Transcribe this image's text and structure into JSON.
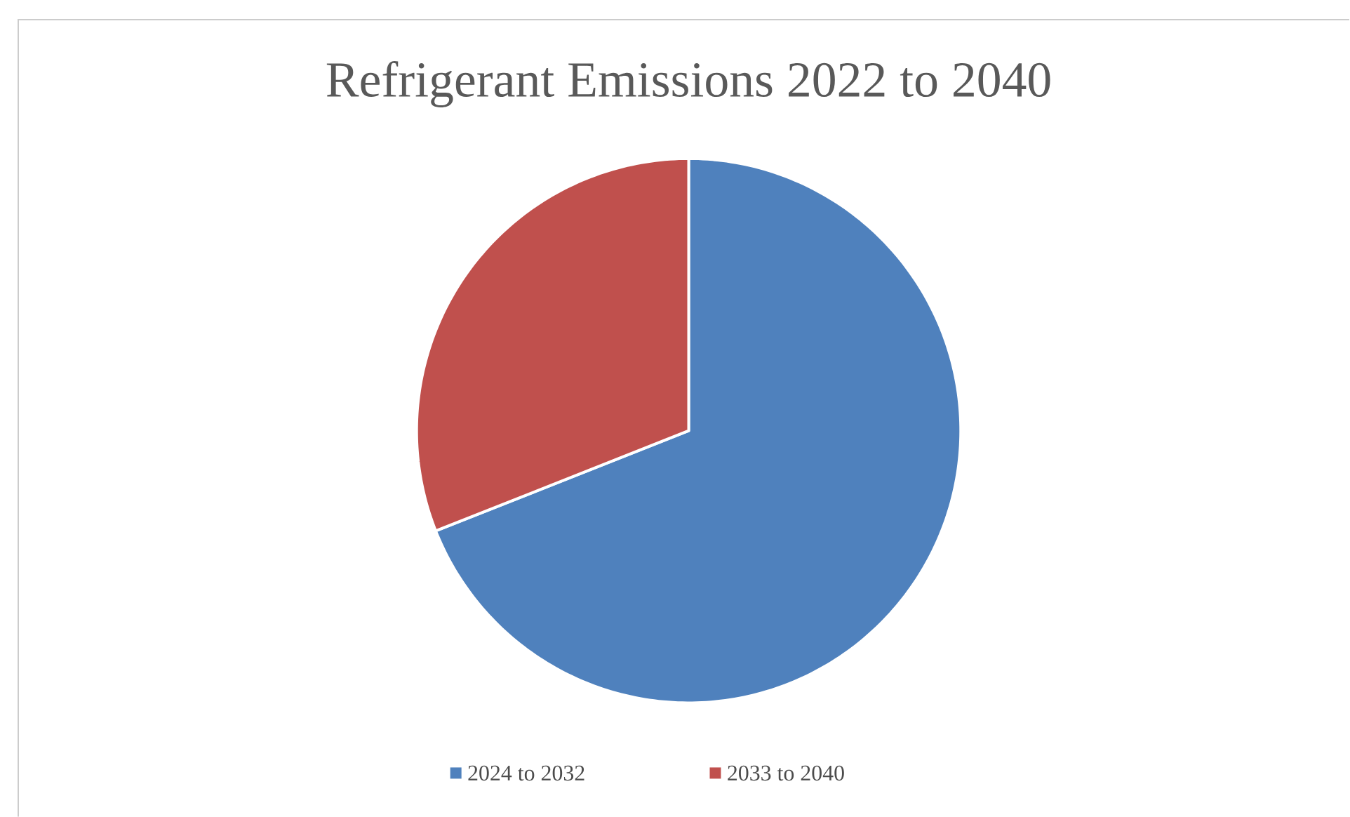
{
  "chart_data": {
    "type": "pie",
    "title": "Refrigerant Emissions 2022 to 2040",
    "categories": [
      "2024 to 2032",
      "2033 to 2040"
    ],
    "values": [
      69,
      31
    ],
    "colors": [
      "#4f81bd",
      "#c0504d"
    ],
    "legend": "bottom"
  }
}
